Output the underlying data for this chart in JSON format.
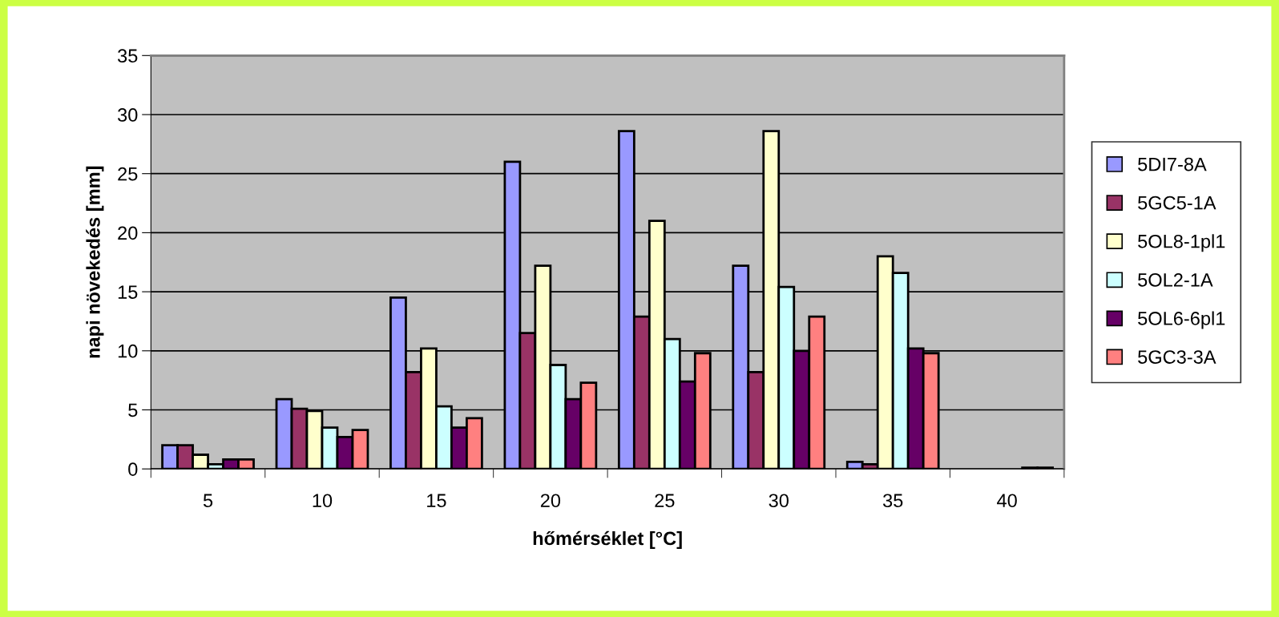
{
  "chart_data": {
    "type": "bar",
    "xlabel": "hőmérséklet [°C]",
    "ylabel": "napi növekedés [mm]",
    "categories": [
      "5",
      "10",
      "15",
      "20",
      "25",
      "30",
      "35",
      "40"
    ],
    "series": [
      {
        "name": "5DI7-8A",
        "color": "#9999ff",
        "values": [
          2.0,
          5.9,
          14.5,
          26.0,
          28.6,
          17.2,
          0.6,
          null
        ]
      },
      {
        "name": "5GC5-1A",
        "color": "#993366",
        "values": [
          2.0,
          5.1,
          8.2,
          11.5,
          12.9,
          8.2,
          0.4,
          null
        ]
      },
      {
        "name": "5OL8-1pl1",
        "color": "#ffffcc",
        "values": [
          1.2,
          4.9,
          10.2,
          17.2,
          21.0,
          28.6,
          18.0,
          null
        ]
      },
      {
        "name": "5OL2-1A",
        "color": "#ccffff",
        "values": [
          0.4,
          3.5,
          5.3,
          8.8,
          11.0,
          15.4,
          16.6,
          null
        ]
      },
      {
        "name": "5OL6-6pl1",
        "color": "#660066",
        "values": [
          0.8,
          2.7,
          3.5,
          5.9,
          7.4,
          10.0,
          10.2,
          0.1
        ]
      },
      {
        "name": "5GC3-3A",
        "color": "#ff8080",
        "values": [
          0.8,
          3.3,
          4.3,
          7.3,
          9.8,
          12.9,
          9.8,
          0.1
        ]
      }
    ],
    "ylim": [
      0,
      35
    ],
    "yticks": [
      0,
      5,
      10,
      15,
      20,
      25,
      30,
      35
    ],
    "grid": "y",
    "legend": "right"
  }
}
